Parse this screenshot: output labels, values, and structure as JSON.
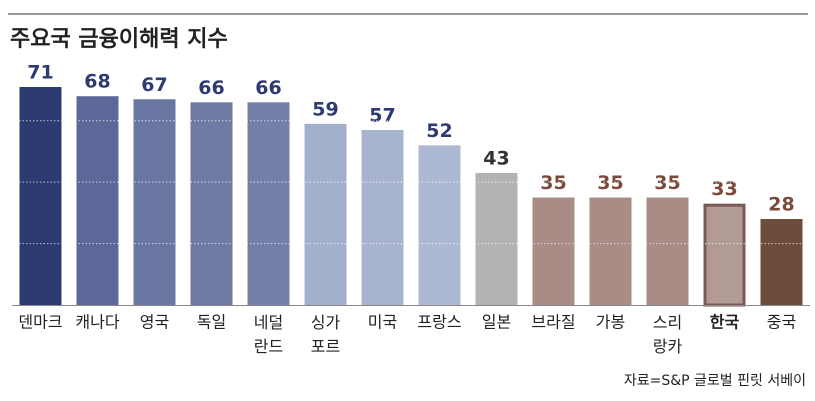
{
  "chart_data": {
    "type": "bar",
    "title": "주요국 금융이해력 지수",
    "categories": [
      "덴마크",
      "캐나다",
      "영국",
      "독일",
      "네덜\n란드",
      "싱가\n포르",
      "미국",
      "프랑스",
      "일본",
      "브라질",
      "가봉",
      "스리\n랑카",
      "한국",
      "중국"
    ],
    "values": [
      71,
      68,
      67,
      66,
      66,
      59,
      57,
      52,
      43,
      35,
      35,
      35,
      33,
      28
    ],
    "colors": [
      "#2e3a72",
      "#5d6898",
      "#6a76a2",
      "#6f7aa5",
      "#737ea9",
      "#a3b0cc",
      "#a8b4cf",
      "#adb8d2",
      "#b3b3b3",
      "#a88c85",
      "#a88c85",
      "#a88c85",
      "#b39b95",
      "#6e4c3b"
    ],
    "label_colors": [
      "#2e3a72",
      "#2e3a72",
      "#2e3a72",
      "#2e3a72",
      "#2e3a72",
      "#2e3a72",
      "#2e3a72",
      "#2e3a72",
      "#333333",
      "#7a4a3a",
      "#7a4a3a",
      "#7a4a3a",
      "#7a4a3a",
      "#7a4a3a"
    ],
    "highlight_index": 12,
    "yticks": [
      20,
      40,
      60
    ],
    "grid": true,
    "source": "자료=S&P 글로벌 핀릿 서베이"
  }
}
